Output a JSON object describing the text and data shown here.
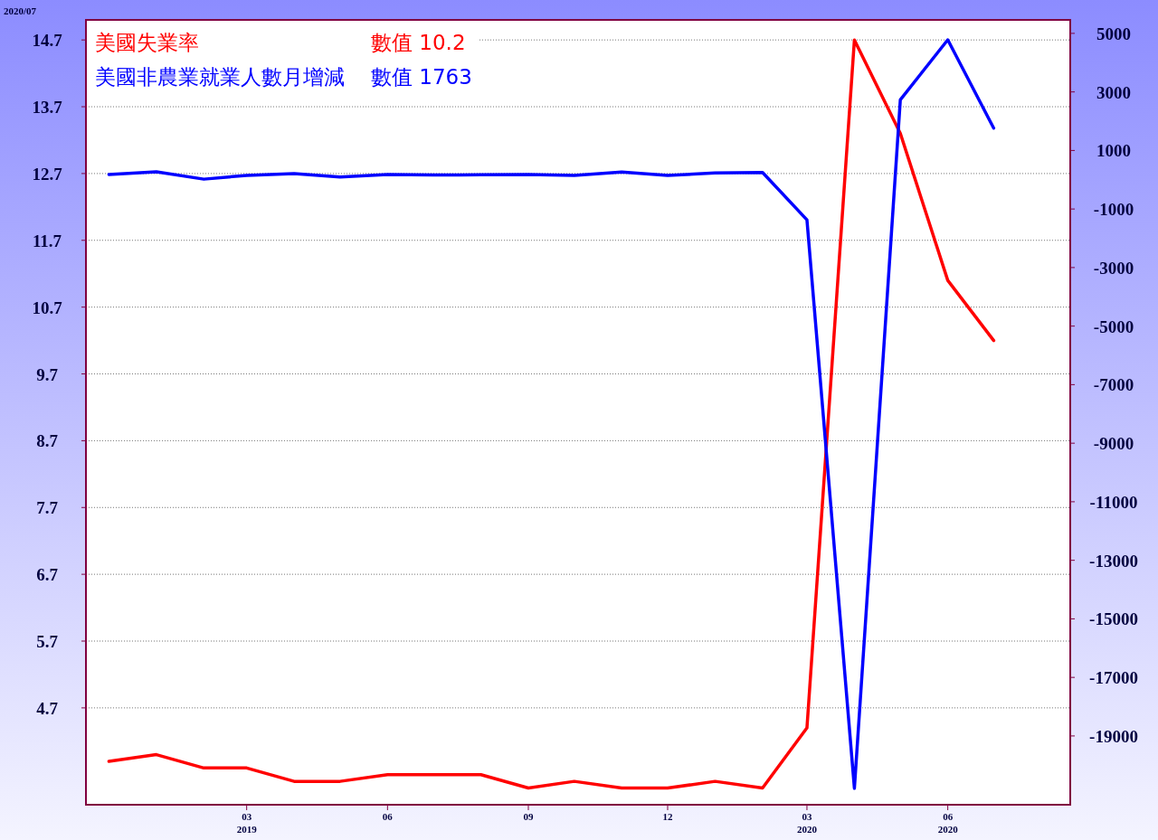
{
  "chart_data": {
    "type": "line",
    "x": [
      "2018-12",
      "2019-01",
      "2019-02",
      "2019-03",
      "2019-04",
      "2019-05",
      "2019-06",
      "2019-07",
      "2019-08",
      "2019-09",
      "2019-10",
      "2019-11",
      "2019-12",
      "2020-01",
      "2020-02",
      "2020-03",
      "2020-04",
      "2020-05",
      "2020-06",
      "2020-07"
    ],
    "series": [
      {
        "name": "美國失業率",
        "color": "#ff0000",
        "values": [
          3.9,
          4.0,
          3.8,
          3.8,
          3.6,
          3.6,
          3.7,
          3.7,
          3.7,
          3.5,
          3.6,
          3.5,
          3.5,
          3.6,
          3.5,
          4.4,
          14.7,
          13.3,
          11.1,
          10.2
        ]
      },
      {
        "name": "美國非農業就業人數月增減",
        "color": "#0000ff",
        "axis": "y2",
        "values": [
          180,
          270,
          20,
          150,
          210,
          90,
          180,
          160,
          170,
          180,
          150,
          260,
          150,
          230,
          250,
          -1370,
          -20790,
          2730,
          4780,
          1763
        ]
      }
    ],
    "xlim": [
      "2018-11-16",
      "2020-08-20"
    ],
    "xticks": [
      {
        "value": "2019-03",
        "label": "03\n2019"
      },
      {
        "value": "2019-06",
        "label": "06"
      },
      {
        "value": "2019-09",
        "label": "09"
      },
      {
        "value": "2019-12",
        "label": "12"
      },
      {
        "value": "2020-03",
        "label": "03\n2020"
      },
      {
        "value": "2020-06",
        "label": "06\n2020"
      }
    ],
    "ylim": [
      3.25,
      15.0
    ],
    "yticks": [
      4.7,
      5.7,
      6.7,
      7.7,
      8.7,
      9.7,
      10.7,
      11.7,
      12.7,
      13.7,
      14.7
    ],
    "y2lim": [
      -21350,
      5460
    ],
    "y2ticks": [
      5000,
      3000,
      1000,
      -1000,
      -3000,
      -5000,
      -7000,
      -9000,
      -11000,
      -13000,
      -15000,
      -17000,
      -19000
    ],
    "grid": "y",
    "legend": "top left",
    "annotations": [
      "2020/07",
      "數值 10.2",
      "數值 1763"
    ]
  }
}
